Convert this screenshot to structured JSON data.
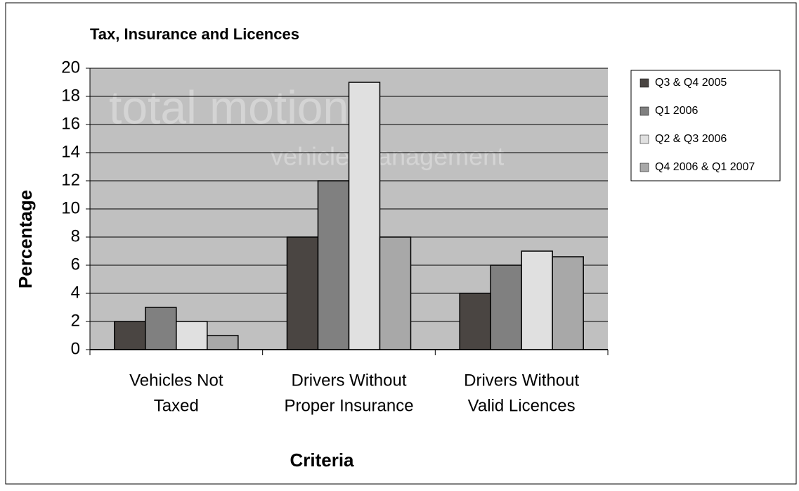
{
  "chart_data": {
    "type": "bar",
    "title": "Tax, Insurance and Licences",
    "watermark": [
      "total motion",
      "vehicle management"
    ],
    "categories": [
      [
        "Vehicles Not",
        "Taxed"
      ],
      [
        "Drivers Without",
        "Proper Insurance"
      ],
      [
        "Drivers Without",
        "Valid Licences"
      ]
    ],
    "series": [
      {
        "name": "Q3 & Q4 2005",
        "color": "#4a4542",
        "values": [
          2,
          8,
          4
        ]
      },
      {
        "name": "Q1 2006",
        "color": "#808080",
        "values": [
          3,
          12,
          6
        ]
      },
      {
        "name": "Q2 & Q3 2006",
        "color": "#e0e0e0",
        "values": [
          2,
          19,
          7
        ]
      },
      {
        "name": "Q4 2006 & Q1 2007",
        "color": "#a8a8a8",
        "values": [
          1,
          8,
          6.6
        ]
      }
    ],
    "xlabel": "Criteria",
    "ylabel": "Percentage",
    "ylim": [
      0,
      20
    ],
    "yticks": [
      0,
      2,
      4,
      6,
      8,
      10,
      12,
      14,
      16,
      18,
      20
    ],
    "grid": true,
    "legend": "right"
  }
}
